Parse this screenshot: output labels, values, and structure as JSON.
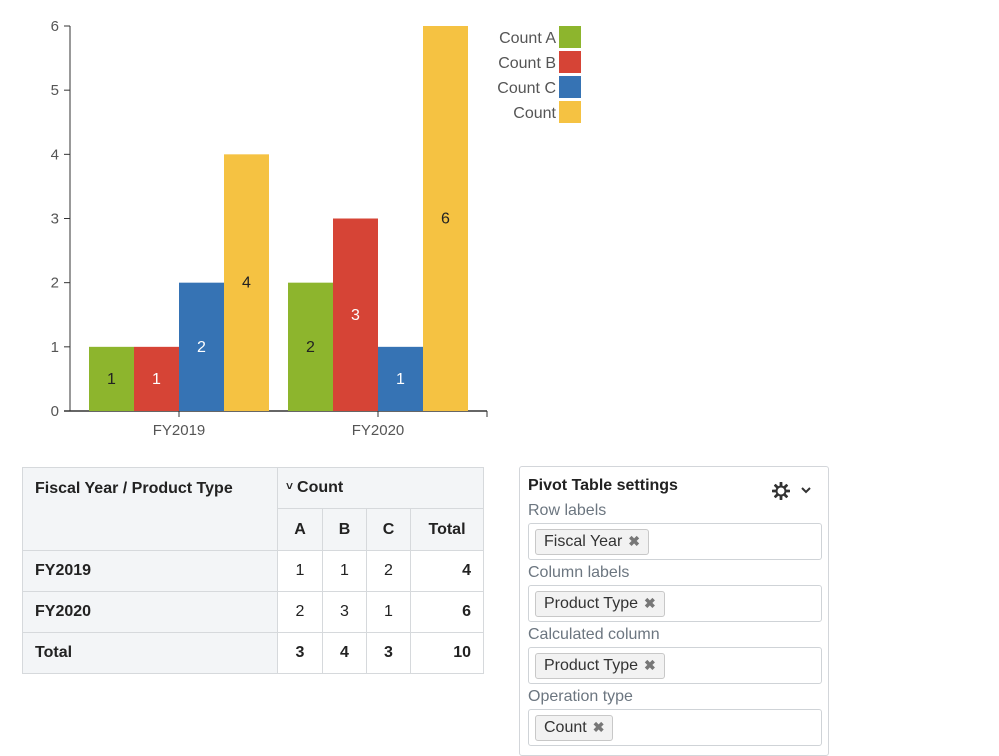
{
  "chart_data": {
    "type": "bar",
    "categories": [
      "FY2019",
      "FY2020"
    ],
    "series": [
      {
        "name": "Count A",
        "values": [
          1,
          2
        ],
        "color": "#8db52d"
      },
      {
        "name": "Count B",
        "values": [
          1,
          3
        ],
        "color": "#d64436"
      },
      {
        "name": "Count C",
        "values": [
          2,
          1
        ],
        "color": "#3673b4"
      },
      {
        "name": "Count",
        "values": [
          4,
          6
        ],
        "color": "#f5c242"
      }
    ],
    "ylim": [
      0,
      6
    ],
    "yticks": [
      "0",
      "1",
      "2",
      "3",
      "4",
      "5",
      "6"
    ],
    "legend": "top-right",
    "grid": false
  },
  "pivot": {
    "corner_label": "Fiscal Year / Product Type",
    "count_label": "Count",
    "chevron_icon": "chevron-down-icon",
    "columns": [
      "A",
      "B",
      "C",
      "Total"
    ],
    "rows": [
      {
        "label": "FY2019",
        "values": [
          "1",
          "1",
          "2",
          "4"
        ]
      },
      {
        "label": "FY2020",
        "values": [
          "2",
          "3",
          "1",
          "6"
        ]
      },
      {
        "label": "Total",
        "values": [
          "3",
          "4",
          "3",
          "10"
        ]
      }
    ]
  },
  "settings": {
    "title": "Pivot Table settings",
    "gear_icon": "gear-icon",
    "caret_icon": "chevron-down-icon",
    "fields": [
      {
        "label": "Row labels",
        "chip": "Fiscal Year"
      },
      {
        "label": "Column labels",
        "chip": "Product Type"
      },
      {
        "label": "Calculated column",
        "chip": "Product Type"
      },
      {
        "label": "Operation type",
        "chip": "Count"
      }
    ],
    "remove_glyph": "✖"
  }
}
